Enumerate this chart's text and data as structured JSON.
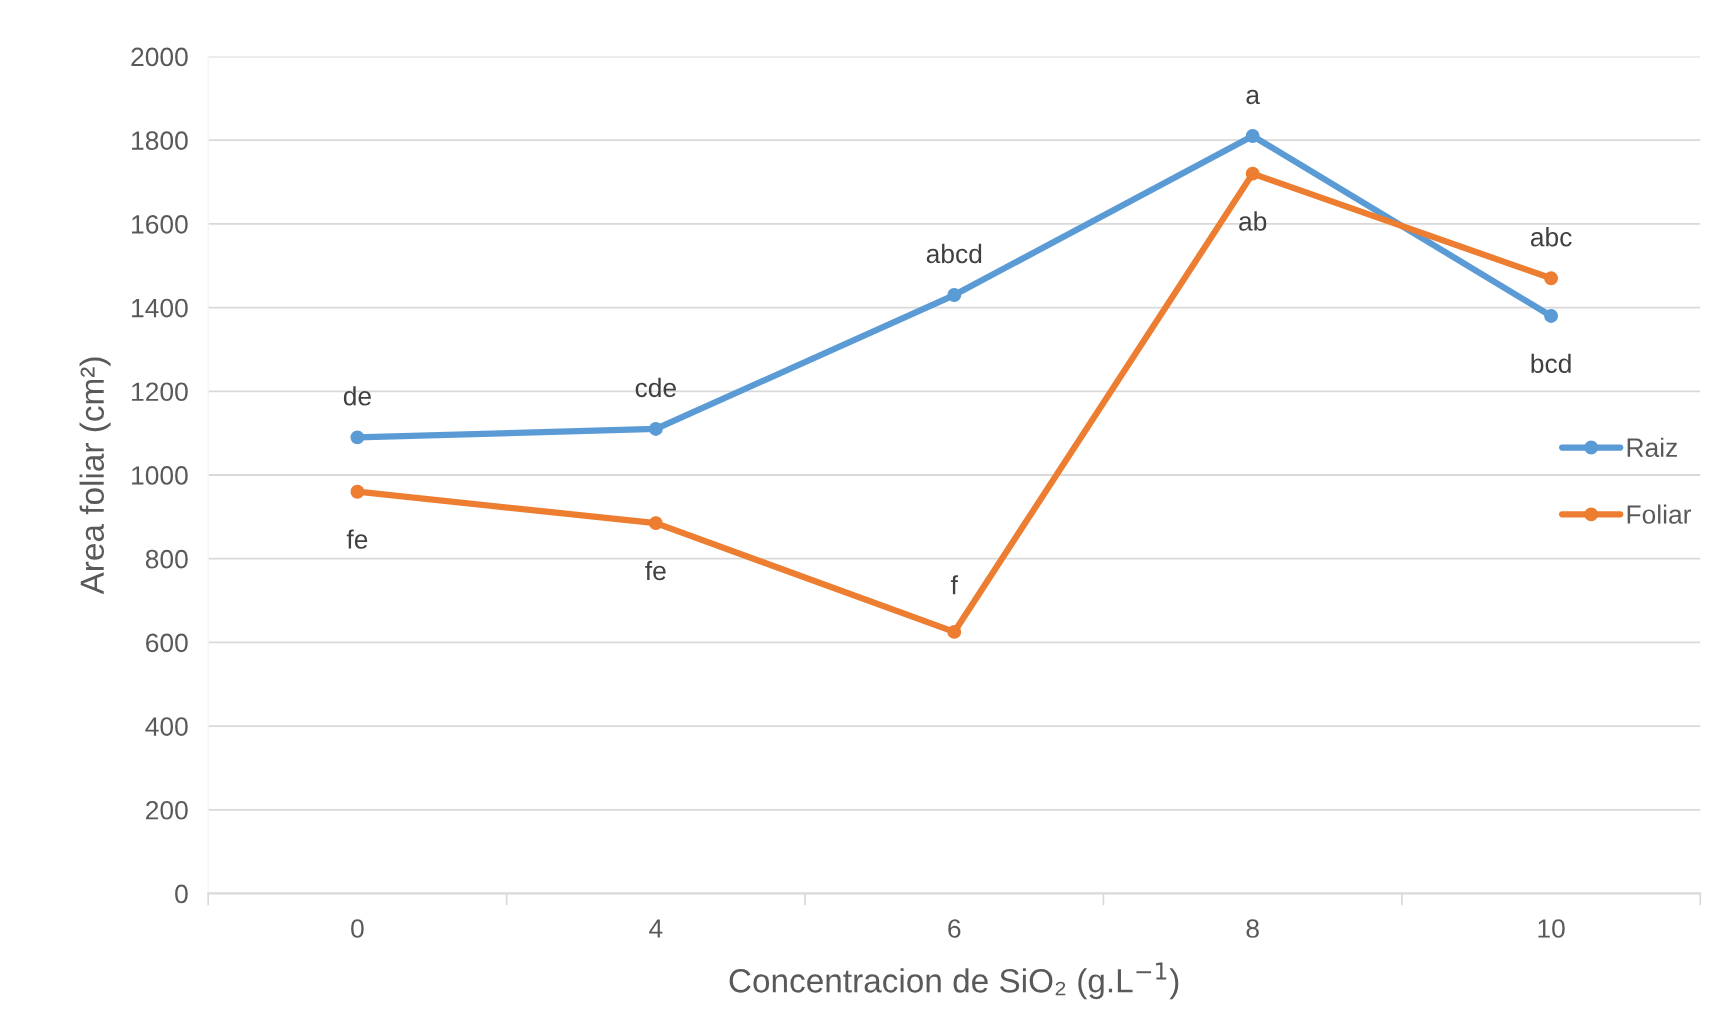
{
  "chart_data": {
    "type": "line",
    "xlabel": "Concentracion de SiO₂ (g.L$^{−1}$)",
    "ylabel": "Area foliar (cm²)",
    "categories": [
      "0",
      "4",
      "6",
      "8",
      "10"
    ],
    "series": [
      {
        "name": "Raiz",
        "color": "#5b9bd5",
        "values": [
          1090,
          1110,
          1430,
          1810,
          1380
        ]
      },
      {
        "name": "Foliar",
        "color": "#ed7d31",
        "values": [
          960,
          885,
          625,
          1720,
          1470
        ]
      }
    ],
    "ylim": [
      0,
      2000
    ],
    "yticks": [
      0,
      200,
      400,
      600,
      800,
      1000,
      1200,
      1400,
      1600,
      1800,
      2000
    ],
    "grid": "y",
    "legend": "right",
    "marker": "circle",
    "line_style": "solid",
    "annotations": [
      {
        "text": "de",
        "x": "0",
        "y": 1090
      },
      {
        "text": "cde",
        "x": "4",
        "y": 1110
      },
      {
        "text": "abcd",
        "x": "6",
        "y": 1430
      },
      {
        "text": "a",
        "x": "8",
        "y": 1810
      },
      {
        "text": "bcd",
        "x": "10",
        "y": 1380
      },
      {
        "text": "fe",
        "x": "0",
        "y": 960
      },
      {
        "text": "fe",
        "x": "4",
        "y": 885
      },
      {
        "text": "f",
        "x": "6",
        "y": 625
      },
      {
        "text": "ab",
        "x": "8",
        "y": 1720
      },
      {
        "text": "abc",
        "x": "10",
        "y": 1470
      }
    ]
  }
}
